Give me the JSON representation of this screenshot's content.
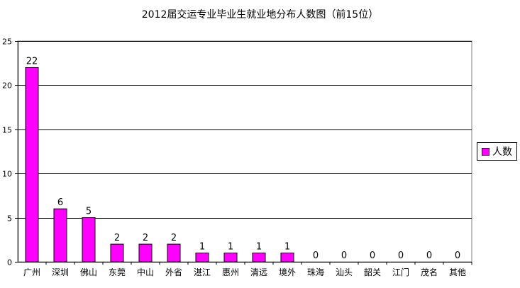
{
  "chart_data": {
    "type": "bar",
    "title": "2012届交运专业毕业生就业地分布人数图（前15位）",
    "categories": [
      "广州",
      "深圳",
      "佛山",
      "东莞",
      "中山",
      "外省",
      "湛江",
      "惠州",
      "清远",
      "境外",
      "珠海",
      "汕头",
      "韶关",
      "江门",
      "茂名",
      "其他"
    ],
    "series": [
      {
        "name": "人数",
        "values": [
          22,
          6,
          5,
          2,
          2,
          2,
          1,
          1,
          1,
          1,
          0,
          0,
          0,
          0,
          0,
          0
        ],
        "color": "#ff00ff"
      }
    ],
    "ylim": [
      0,
      25
    ],
    "yticks": [
      0,
      5,
      10,
      15,
      20,
      25
    ],
    "grid": true,
    "legend": "right",
    "plot_background": "#ffffff",
    "bar_outline": "#000000",
    "gridline_color": "#000000"
  }
}
